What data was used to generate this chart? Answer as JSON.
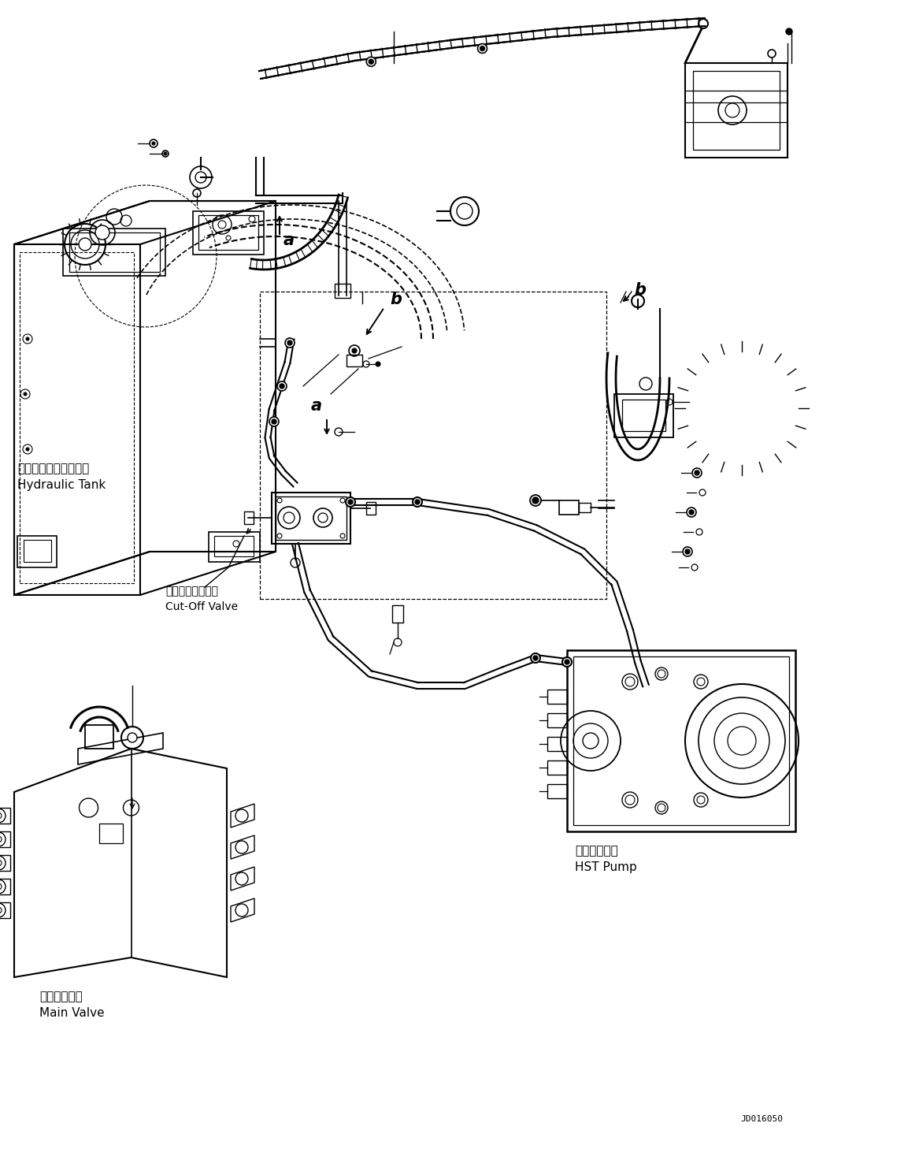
{
  "background_color": "#ffffff",
  "figure_width": 11.53,
  "figure_height": 14.58,
  "dpi": 100,
  "doc_number": "JD016050",
  "labels": {
    "hydraulic_tank_jp": "ハイドロリックタンク",
    "hydraulic_tank_en": "Hydraulic Tank",
    "cut_off_valve_jp": "カットオフバルブ",
    "cut_off_valve_en": "Cut-Off Valve",
    "hst_pump_jp": "ＨＳＴポンプ",
    "hst_pump_en": "HST Pump",
    "main_valve_jp": "メインバルブ",
    "main_valve_en": "Main Valve"
  },
  "line_color": "#000000",
  "lw": 1.2,
  "label_fontsize": 9,
  "annot_fontsize": 13
}
